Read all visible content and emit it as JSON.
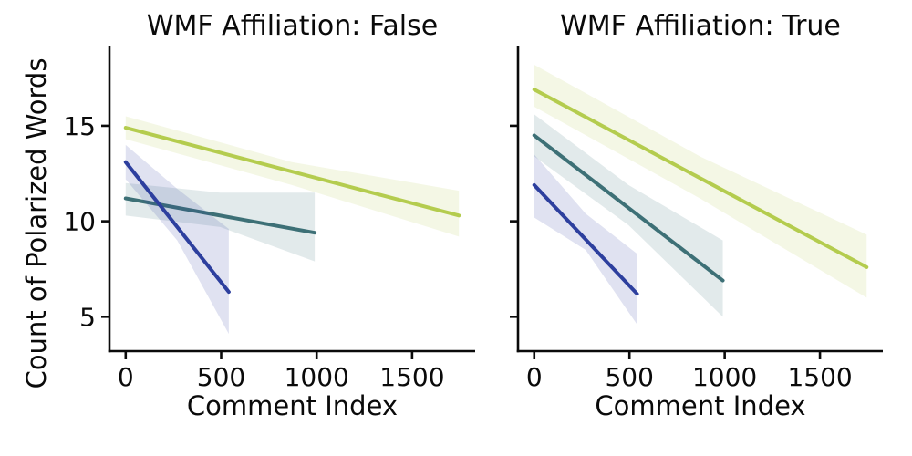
{
  "figure": {
    "background": "#ffffff",
    "ylabel": "Count of Polarized Words",
    "text_color": "#0a0a0a",
    "axis_color": "#0a0a0a",
    "ci_alpha": 0.15
  },
  "chart_data": [
    {
      "type": "line",
      "title": "WMF Affiliation: False",
      "xlabel": "Comment Index",
      "ylabel": "Count of Polarized Words",
      "xlim": [
        -85,
        1830
      ],
      "ylim": [
        3.2,
        19.2
      ],
      "xticks": [
        0,
        500,
        1000,
        1500
      ],
      "yticks": [
        5,
        10,
        15
      ],
      "ytick_labels_visible": true,
      "grid": false,
      "legend": "none",
      "series": [
        {
          "name": "yellowgreen",
          "color": "#b4cc4e",
          "x": [
            0,
            1745
          ],
          "y": [
            14.9,
            10.3
          ],
          "ci_x": [
            0,
            870,
            1745
          ],
          "ci_top": [
            15.5,
            13.1,
            11.6
          ],
          "ci_bottom": [
            14.3,
            11.9,
            9.2
          ]
        },
        {
          "name": "teal",
          "color": "#3d7076",
          "x": [
            0,
            990
          ],
          "y": [
            11.2,
            9.4
          ],
          "ci_x": [
            0,
            495,
            990
          ],
          "ci_top": [
            12.0,
            11.5,
            11.5
          ],
          "ci_bottom": [
            10.3,
            9.7,
            7.9
          ]
        },
        {
          "name": "navy",
          "color": "#2d3f9e",
          "x": [
            0,
            540
          ],
          "y": [
            13.1,
            6.3
          ],
          "ci_x": [
            0,
            270,
            540
          ],
          "ci_top": [
            14.0,
            11.7,
            9.6
          ],
          "ci_bottom": [
            12.2,
            9.0,
            4.1
          ]
        }
      ]
    },
    {
      "type": "line",
      "title": "WMF Affiliation: True",
      "xlabel": "Comment Index",
      "ylabel": "",
      "xlim": [
        -85,
        1830
      ],
      "ylim": [
        3.2,
        19.2
      ],
      "xticks": [
        0,
        500,
        1000,
        1500
      ],
      "yticks": [
        5,
        10,
        15
      ],
      "ytick_labels_visible": false,
      "grid": false,
      "legend": "none",
      "series": [
        {
          "name": "yellowgreen",
          "color": "#b4cc4e",
          "x": [
            0,
            1745
          ],
          "y": [
            16.9,
            7.6
          ],
          "ci_x": [
            0,
            870,
            1745
          ],
          "ci_top": [
            18.2,
            13.4,
            9.3
          ],
          "ci_bottom": [
            16.0,
            11.2,
            6.0
          ]
        },
        {
          "name": "teal",
          "color": "#3d7076",
          "x": [
            0,
            990
          ],
          "y": [
            14.5,
            6.9
          ],
          "ci_x": [
            0,
            495,
            990
          ],
          "ci_top": [
            15.6,
            11.9,
            9.0
          ],
          "ci_bottom": [
            13.4,
            9.8,
            5.0
          ]
        },
        {
          "name": "navy",
          "color": "#2d3f9e",
          "x": [
            0,
            540
          ],
          "y": [
            11.9,
            6.2
          ],
          "ci_x": [
            0,
            270,
            540
          ],
          "ci_top": [
            13.5,
            10.4,
            8.3
          ],
          "ci_bottom": [
            10.2,
            8.5,
            4.6
          ]
        }
      ]
    }
  ]
}
